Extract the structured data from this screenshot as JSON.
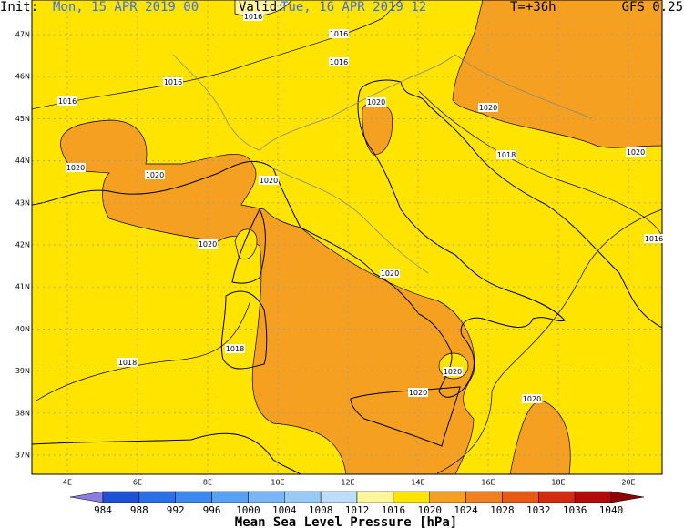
{
  "header": {
    "init_label": "Init:",
    "init": "Mon, 15 APR 2019  00",
    "valid_label": "Valid:",
    "valid": "Tue, 16 APR 2019  12",
    "lead": "T=+36h",
    "model": "GFS 0.25"
  },
  "map": {
    "lat_labels": [
      "47N",
      "46N",
      "45N",
      "44N",
      "43N",
      "42N",
      "41N",
      "40N",
      "39N",
      "38N",
      "37N"
    ],
    "lon_labels": [
      "4E",
      "6E",
      "8E",
      "10E",
      "12E",
      "14E",
      "16E",
      "18E",
      "20E"
    ],
    "isobar_labels": [
      1016,
      1016,
      1016,
      1016,
      1016,
      1020,
      1020,
      1020,
      1020,
      1020,
      1018,
      1020,
      1020,
      1016,
      1020,
      1018,
      1018,
      1020,
      1020,
      1020
    ]
  },
  "colorbar": {
    "title": "Mean Sea Level Pressure [hPa]",
    "labels": [
      984,
      988,
      992,
      996,
      1000,
      1004,
      1008,
      1012,
      1016,
      1020,
      1024,
      1028,
      1032,
      1036,
      1040
    ],
    "colors": [
      "#8a7ee0",
      "#1e50d8",
      "#2a6ee8",
      "#3c88f0",
      "#58a0f4",
      "#78b6f6",
      "#98caf8",
      "#bcdefa",
      "#fff59a",
      "#ffe400",
      "#f5a020",
      "#f08020",
      "#e85a14",
      "#d42a10",
      "#b40a0a",
      "#900000"
    ]
  }
}
